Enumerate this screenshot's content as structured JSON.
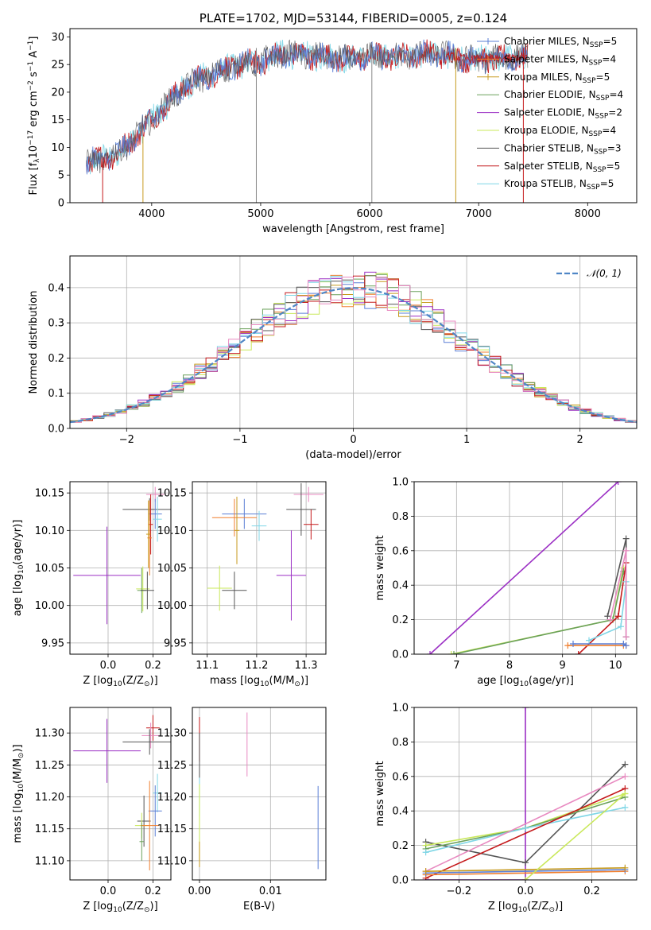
{
  "colors": {
    "chabrier_miles": "#5b7fd6",
    "salpeter_miles": "#f07e2c",
    "kroupa_miles": "#c79a1e",
    "chabrier_elodie": "#6aa05a",
    "salpeter_elodie": "#9b2fc4",
    "kroupa_elodie": "#c9e85a",
    "chabrier_stelib": "#555555",
    "salpeter_stelib": "#c4191b",
    "kroupa_stelib": "#7fd6e6",
    "pink": "#e889c0",
    "normal_curve": "#4f86c6",
    "grid": "#b0b0b0"
  },
  "chart_data": [
    {
      "id": "spectrum",
      "type": "line",
      "title": "PLATE=1702, MJD=53144, FIBERID=0005, z=0.124",
      "xlabel": "wavelength [Angstrom, rest frame]",
      "ylabel_main": "Flux [f",
      "ylabel_sub": "λ",
      "ylabel_rest": "10",
      "ylabel_exp1": "−17",
      "ylabel_mid": " erg cm",
      "ylabel_exp2": "−2",
      "ylabel_mid2": " s",
      "ylabel_exp3": "−1",
      "ylabel_end": " A",
      "ylabel_exp4": "−1",
      "ylabel_close": "]",
      "xlim": [
        3250,
        8450
      ],
      "ylim": [
        0,
        31.5
      ],
      "xticks": [
        4000,
        5000,
        6000,
        7000,
        8000
      ],
      "yticks": [
        0,
        5,
        10,
        15,
        20,
        25,
        30
      ],
      "grid": false,
      "spikes_x": [
        4960,
        6020,
        6790,
        7410
      ],
      "legend": [
        {
          "name": "Chabrier MILES, N",
          "sub": "SSP",
          "val": "=5",
          "color": "chabrier_miles"
        },
        {
          "name": "Salpeter MILES, N",
          "sub": "SSP",
          "val": "=4",
          "color": "salpeter_miles"
        },
        {
          "name": "Kroupa MILES, N",
          "sub": "SSP",
          "val": "=5",
          "color": "kroupa_miles"
        },
        {
          "name": "Chabrier ELODIE, N",
          "sub": "SSP",
          "val": "=4",
          "color": "chabrier_elodie"
        },
        {
          "name": "Salpeter ELODIE, N",
          "sub": "SSP",
          "val": "=2",
          "color": "salpeter_elodie"
        },
        {
          "name": "Kroupa ELODIE, N",
          "sub": "SSP",
          "val": "=4",
          "color": "kroupa_elodie"
        },
        {
          "name": "Chabrier STELIB, N",
          "sub": "SSP",
          "val": "=3",
          "color": "chabrier_stelib"
        },
        {
          "name": "Salpeter STELIB, N",
          "sub": "SSP",
          "val": "=5",
          "color": "salpeter_stelib"
        },
        {
          "name": "Kroupa STELIB, N",
          "sub": "SSP",
          "val": "=5",
          "color": "kroupa_stelib"
        }
      ],
      "envelope": [
        [
          3400,
          7
        ],
        [
          3550,
          8
        ],
        [
          3700,
          9
        ],
        [
          3850,
          12
        ],
        [
          4000,
          15
        ],
        [
          4150,
          18
        ],
        [
          4300,
          21
        ],
        [
          4450,
          22.5
        ],
        [
          4600,
          23.5
        ],
        [
          4800,
          25
        ],
        [
          5000,
          25.5
        ],
        [
          5200,
          27
        ],
        [
          5500,
          26.5
        ],
        [
          5800,
          26
        ],
        [
          6000,
          26.5
        ],
        [
          6300,
          26.5
        ],
        [
          6600,
          27
        ],
        [
          6900,
          26
        ],
        [
          7200,
          26
        ],
        [
          7450,
          26.5
        ]
      ]
    },
    {
      "id": "residuals",
      "type": "histogram",
      "xlabel": "(data-model)/error",
      "ylabel": "Normed distribution",
      "xlim": [
        -2.5,
        2.5
      ],
      "ylim": [
        0,
        0.49
      ],
      "xticks": [
        -2,
        -1,
        0,
        1,
        2
      ],
      "yticks": [
        0.0,
        0.1,
        0.2,
        0.3,
        0.4
      ],
      "grid": true,
      "legend": "𝒩(0, 1)",
      "bin_width": 0.1
    },
    {
      "id": "age_vs_Z",
      "type": "errorbar",
      "xlabel_pre": "Z [log",
      "xlabel_sub": "10",
      "xlabel_post": "(Z/Z",
      "xlabel_sun": "⊙",
      "xlabel_end": ")]",
      "ylabel_pre": "age  [log",
      "ylabel_sub": "10",
      "ylabel_post": "(age/yr)]",
      "xlim": [
        -0.17,
        0.28
      ],
      "ylim": [
        9.935,
        10.165
      ],
      "xticks": [
        0.0,
        0.2
      ],
      "yticks": [
        9.95,
        10.0,
        10.05,
        10.1,
        10.15
      ],
      "grid": true,
      "points": [
        {
          "x": 0.21,
          "y": 10.148,
          "xerr": 0.04,
          "yerr": 0.01,
          "color": "pink"
        },
        {
          "x": 0.185,
          "y": 10.128,
          "xerr": 0.12,
          "yerr": 0.015,
          "color": "chabrier_stelib"
        },
        {
          "x": 0.21,
          "y": 10.122,
          "xerr": 0.03,
          "yerr": 0.02,
          "color": "chabrier_miles"
        },
        {
          "x": 0.22,
          "y": 10.115,
          "xerr": 0.02,
          "yerr": 0.03,
          "color": "kroupa_stelib"
        },
        {
          "x": 0.19,
          "y": 10.108,
          "xerr": 0.01,
          "yerr": 0.04,
          "color": "salpeter_stelib"
        },
        {
          "x": 0.185,
          "y": 10.09,
          "xerr": 0.01,
          "yerr": 0.05,
          "color": "salpeter_miles"
        },
        {
          "x": 0.18,
          "y": 10.095,
          "xerr": 0.01,
          "yerr": 0.045,
          "color": "kroupa_miles"
        },
        {
          "x": -0.005,
          "y": 10.04,
          "xerr": 0.15,
          "yerr": 0.065,
          "color": "salpeter_elodie"
        },
        {
          "x": 0.155,
          "y": 10.022,
          "xerr": 0.03,
          "yerr": 0.03,
          "color": "kroupa_elodie"
        },
        {
          "x": 0.15,
          "y": 10.02,
          "xerr": 0.02,
          "yerr": 0.03,
          "color": "chabrier_elodie"
        },
        {
          "x": 0.175,
          "y": 10.02,
          "xerr": 0.03,
          "yerr": 0.025,
          "color": "chabrier_stelib"
        }
      ]
    },
    {
      "id": "age_vs_mass",
      "type": "errorbar",
      "xlabel_pre": "mass [log",
      "xlabel_sub": "10",
      "xlabel_post": "(M/M",
      "xlabel_sun": "⊙",
      "xlabel_end": ")]",
      "xlim": [
        11.07,
        11.34
      ],
      "ylim": [
        9.935,
        10.165
      ],
      "xticks": [
        11.1,
        11.2,
        11.3
      ],
      "yticks": [
        9.95,
        10.0,
        10.05,
        10.1,
        10.15
      ],
      "grid": true,
      "points": [
        {
          "x": 11.305,
          "y": 10.148,
          "xerr": 0.03,
          "yerr": 0.01,
          "color": "pink"
        },
        {
          "x": 11.29,
          "y": 10.128,
          "xerr": 0.03,
          "yerr": 0.035,
          "color": "chabrier_stelib"
        },
        {
          "x": 11.175,
          "y": 10.122,
          "xerr": 0.045,
          "yerr": 0.02,
          "color": "chabrier_miles"
        },
        {
          "x": 11.155,
          "y": 10.117,
          "xerr": 0.045,
          "yerr": 0.025,
          "color": "salpeter_miles"
        },
        {
          "x": 11.31,
          "y": 10.108,
          "xerr": 0.015,
          "yerr": 0.02,
          "color": "salpeter_stelib"
        },
        {
          "x": 11.205,
          "y": 10.106,
          "xerr": 0.015,
          "yerr": 0.02,
          "color": "kroupa_stelib"
        },
        {
          "x": 11.16,
          "y": 10.1,
          "xerr": 0.005,
          "yerr": 0.045,
          "color": "kroupa_miles"
        },
        {
          "x": 11.27,
          "y": 10.04,
          "xerr": 0.03,
          "yerr": 0.06,
          "color": "salpeter_elodie"
        },
        {
          "x": 11.125,
          "y": 10.023,
          "xerr": 0.025,
          "yerr": 0.03,
          "color": "kroupa_elodie"
        },
        {
          "x": 11.155,
          "y": 10.02,
          "xerr": 0.025,
          "yerr": 0.025,
          "color": "chabrier_stelib"
        }
      ]
    },
    {
      "id": "weight_vs_age",
      "type": "line",
      "xlabel_pre": "age  [log",
      "xlabel_sub": "10",
      "xlabel_post": "(age/yr)]",
      "ylabel": "mass weight",
      "xlim": [
        6.2,
        10.4
      ],
      "ylim": [
        0,
        1.0
      ],
      "xticks": [
        7,
        8,
        9,
        10
      ],
      "yticks": [
        0.0,
        0.2,
        0.4,
        0.6,
        0.8,
        1.0
      ],
      "grid": true,
      "series": [
        {
          "color": "salpeter_elodie",
          "x": [
            6.5,
            10.05
          ],
          "y": [
            0.0,
            1.0
          ]
        },
        {
          "color": "kroupa_elodie",
          "x": [
            6.9,
            9.95,
            10.15
          ],
          "y": [
            0.0,
            0.2,
            0.5
          ]
        },
        {
          "color": "chabrier_elodie",
          "x": [
            6.95,
            9.95,
            10.15
          ],
          "y": [
            0.0,
            0.2,
            0.48
          ]
        },
        {
          "color": "chabrier_stelib",
          "x": [
            9.85,
            10.2,
            10.2
          ],
          "y": [
            0.22,
            0.67,
            0.1
          ]
        },
        {
          "color": "salpeter_stelib",
          "x": [
            9.3,
            10.05,
            10.2
          ],
          "y": [
            0.0,
            0.22,
            0.53
          ]
        },
        {
          "color": "kroupa_stelib",
          "x": [
            9.5,
            10.1,
            10.2
          ],
          "y": [
            0.08,
            0.16,
            0.42
          ]
        },
        {
          "color": "salpeter_miles",
          "x": [
            9.1,
            10.15,
            10.2
          ],
          "y": [
            0.05,
            0.05,
            0.05
          ]
        },
        {
          "color": "chabrier_miles",
          "x": [
            9.2,
            10.15,
            10.2
          ],
          "y": [
            0.06,
            0.06,
            0.05
          ]
        },
        {
          "color": "pink",
          "x": [
            9.9,
            10.2,
            10.2
          ],
          "y": [
            0.2,
            0.6,
            0.1
          ]
        }
      ]
    },
    {
      "id": "mass_vs_Z",
      "type": "errorbar",
      "xlabel_pre": "Z [log",
      "xlabel_sub": "10",
      "xlabel_post": "(Z/Z",
      "xlabel_sun": "⊙",
      "xlabel_end": ")]",
      "ylabel_pre": "mass [log",
      "ylabel_sub": "10",
      "ylabel_post": "(M/M",
      "ylabel_sun": "⊙",
      "ylabel_end": ")]",
      "xlim": [
        -0.17,
        0.28
      ],
      "ylim": [
        11.07,
        11.34
      ],
      "xticks": [
        0.0,
        0.2
      ],
      "yticks": [
        11.1,
        11.15,
        11.2,
        11.25,
        11.3
      ],
      "grid": true,
      "points": [
        {
          "x": 0.2,
          "y": 11.308,
          "xerr": 0.03,
          "yerr": 0.02,
          "color": "salpeter_stelib"
        },
        {
          "x": 0.19,
          "y": 11.296,
          "xerr": 0.04,
          "yerr": 0.02,
          "color": "pink"
        },
        {
          "x": 0.185,
          "y": 11.286,
          "xerr": 0.12,
          "yerr": 0.02,
          "color": "chabrier_stelib"
        },
        {
          "x": -0.005,
          "y": 11.272,
          "xerr": 0.15,
          "yerr": 0.05,
          "color": "salpeter_elodie"
        },
        {
          "x": 0.22,
          "y": 11.206,
          "xerr": 0.02,
          "yerr": 0.03,
          "color": "kroupa_stelib"
        },
        {
          "x": 0.21,
          "y": 11.178,
          "xerr": 0.03,
          "yerr": 0.04,
          "color": "chabrier_miles"
        },
        {
          "x": 0.16,
          "y": 11.162,
          "xerr": 0.03,
          "yerr": 0.04,
          "color": "chabrier_stelib"
        },
        {
          "x": 0.15,
          "y": 11.155,
          "xerr": 0.03,
          "yerr": 0.02,
          "color": "kroupa_elodie"
        },
        {
          "x": 0.185,
          "y": 11.155,
          "xerr": 0.04,
          "yerr": 0.07,
          "color": "salpeter_miles"
        },
        {
          "x": 0.15,
          "y": 11.13,
          "xerr": 0.01,
          "yerr": 0.03,
          "color": "chabrier_elodie"
        }
      ]
    },
    {
      "id": "mass_vs_ebv",
      "type": "errorbar",
      "xlabel": "E(B-V)",
      "xlim": [
        -0.001,
        0.0178
      ],
      "ylim": [
        11.07,
        11.34
      ],
      "xticks": [
        0.0,
        0.01
      ],
      "xtick_labels": [
        "0.00",
        "0.01"
      ],
      "yticks": [
        11.1,
        11.15,
        11.2,
        11.25,
        11.3
      ],
      "grid": true,
      "points": [
        {
          "x": 0.0,
          "y": 11.29,
          "xerr": 0,
          "yerr": 0.035,
          "color": "salpeter_stelib"
        },
        {
          "x": 0.0,
          "y": 11.265,
          "xerr": 0,
          "yerr": 0.035,
          "color": "chabrier_stelib"
        },
        {
          "x": 0.0,
          "y": 11.2,
          "xerr": 0,
          "yerr": 0.03,
          "color": "kroupa_stelib"
        },
        {
          "x": 0.0,
          "y": 11.16,
          "xerr": 0,
          "yerr": 0.06,
          "color": "kroupa_elodie"
        },
        {
          "x": 0.0,
          "y": 11.11,
          "xerr": 0,
          "yerr": 0.02,
          "color": "kroupa_miles"
        },
        {
          "x": 0.0067,
          "y": 11.282,
          "xerr": 0,
          "yerr": 0.05,
          "color": "pink"
        },
        {
          "x": 0.0167,
          "y": 11.152,
          "xerr": 0,
          "yerr": 0.065,
          "color": "chabrier_miles"
        }
      ]
    },
    {
      "id": "weight_vs_Z",
      "type": "line",
      "xlabel_pre": "Z [log",
      "xlabel_sub": "10",
      "xlabel_post": "(Z/Z",
      "xlabel_sun": "⊙",
      "xlabel_end": ")]",
      "ylabel": "mass weight",
      "xlim": [
        -0.335,
        0.335
      ],
      "ylim": [
        0,
        1.0
      ],
      "xticks": [
        -0.2,
        0.0,
        0.2
      ],
      "yticks": [
        0.0,
        0.2,
        0.4,
        0.6,
        0.8,
        1.0
      ],
      "grid": true,
      "series": [
        {
          "color": "salpeter_elodie",
          "x": [
            -0.3,
            0.0,
            0.0
          ],
          "y": [
            0.0,
            0.0,
            1.0
          ]
        },
        {
          "color": "chabrier_stelib",
          "x": [
            -0.3,
            0.0,
            0.3
          ],
          "y": [
            0.22,
            0.1,
            0.67
          ]
        },
        {
          "color": "kroupa_elodie",
          "x": [
            -0.3,
            0.0,
            0.3
          ],
          "y": [
            0.2,
            0.3,
            0.5
          ]
        },
        {
          "color": "chabrier_elodie",
          "x": [
            -0.3,
            0.0,
            0.3
          ],
          "y": [
            0.18,
            0.3,
            0.48
          ]
        },
        {
          "color": "kroupa_stelib",
          "x": [
            -0.3,
            0.0,
            0.3
          ],
          "y": [
            0.16,
            0.3,
            0.42
          ]
        },
        {
          "color": "pink",
          "x": [
            -0.3,
            0.3
          ],
          "y": [
            0.05,
            0.6
          ]
        },
        {
          "color": "salpeter_stelib",
          "x": [
            -0.3,
            0.3
          ],
          "y": [
            0.01,
            0.53
          ]
        },
        {
          "color": "salpeter_miles",
          "x": [
            -0.3,
            0.3
          ],
          "y": [
            0.03,
            0.05
          ]
        },
        {
          "color": "chabrier_miles",
          "x": [
            -0.3,
            0.3
          ],
          "y": [
            0.04,
            0.06
          ]
        },
        {
          "color": "kroupa_miles",
          "x": [
            -0.3,
            0.3
          ],
          "y": [
            0.05,
            0.07
          ]
        },
        {
          "color": "kroupa_elodie",
          "x": [
            0.0,
            0.3
          ],
          "y": [
            0.0,
            0.5
          ]
        }
      ]
    }
  ]
}
